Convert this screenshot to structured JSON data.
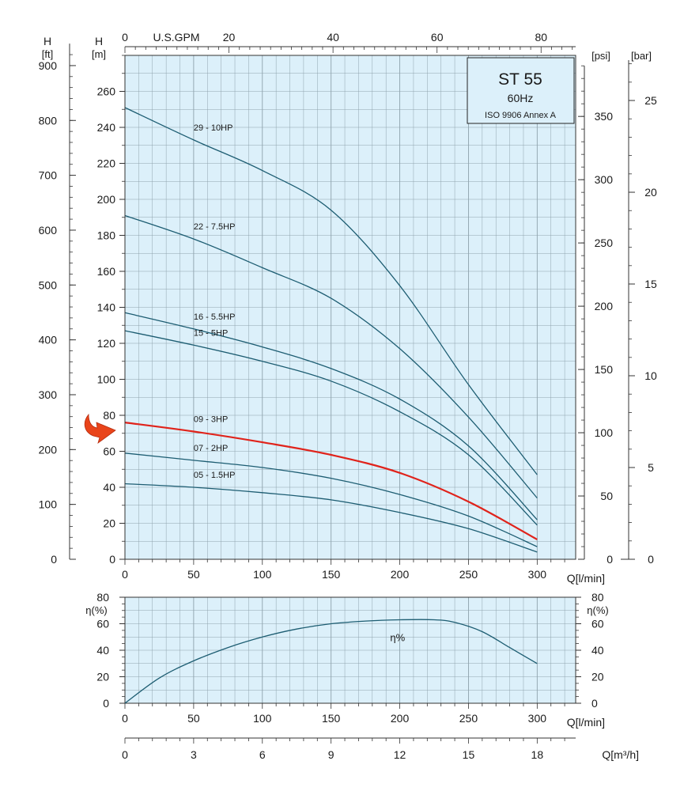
{
  "colors": {
    "plot_bg": "#dcf0fa",
    "grid": "#8fa3ad",
    "curve": "#1d5d72",
    "highlight": "#e0231b",
    "arrow": "#e9441a",
    "axis": "#333333"
  },
  "info_box": {
    "model": "ST 55",
    "frequency": "60Hz",
    "standard": "ISO 9906 Annex A"
  },
  "chart_data": [
    {
      "type": "line",
      "title": "ST 55",
      "subtitle": "60Hz",
      "xlabel": "Q[l/min]",
      "x_ticks": [
        0,
        50,
        100,
        150,
        200,
        250,
        300
      ],
      "xlim": [
        0,
        328
      ],
      "ylabel": "H [m]",
      "y_ticks": [
        0,
        20,
        40,
        60,
        80,
        100,
        120,
        140,
        160,
        180,
        200,
        220,
        240,
        260
      ],
      "ylim": [
        0,
        280
      ],
      "grid": true,
      "secondary_axes": {
        "top": {
          "label": "U.S.GPM",
          "ticks": [
            0,
            20,
            40,
            60,
            80
          ]
        },
        "left_outer": {
          "label_top": "H",
          "label_unit": "[ft]",
          "ticks": [
            0,
            100,
            200,
            300,
            400,
            500,
            600,
            700,
            800,
            900
          ]
        },
        "right_psi": {
          "label": "[psi]",
          "ticks": [
            0,
            50,
            100,
            150,
            200,
            250,
            300,
            350
          ]
        },
        "right_bar": {
          "label": "[bar]",
          "ticks": [
            0,
            5,
            10,
            15,
            20,
            25
          ]
        }
      },
      "highlighted_series": "09 - 3HP",
      "series": [
        {
          "name": "29 - 10HP",
          "x": [
            0,
            50,
            100,
            150,
            200,
            250,
            300
          ],
          "values": [
            251,
            233,
            216,
            194,
            152,
            97,
            47
          ]
        },
        {
          "name": "22 - 7.5HP",
          "x": [
            0,
            50,
            100,
            150,
            200,
            250,
            300
          ],
          "values": [
            191,
            178,
            162,
            145,
            117,
            79,
            34
          ]
        },
        {
          "name": "16 - 5.5HP",
          "x": [
            0,
            50,
            100,
            150,
            200,
            250,
            300
          ],
          "values": [
            137,
            128,
            118,
            106,
            89,
            63,
            22
          ]
        },
        {
          "name": "15 - 5HP",
          "x": [
            0,
            50,
            100,
            150,
            200,
            250,
            300
          ],
          "values": [
            127,
            119,
            110,
            99,
            82,
            58,
            19
          ]
        },
        {
          "name": "09 - 3HP",
          "x": [
            0,
            50,
            100,
            150,
            200,
            250,
            300
          ],
          "values": [
            76,
            71,
            65,
            58,
            48,
            32,
            11
          ]
        },
        {
          "name": "07 - 2HP",
          "x": [
            0,
            50,
            100,
            150,
            200,
            250,
            300
          ],
          "values": [
            59,
            55,
            51,
            45,
            36,
            24,
            7
          ]
        },
        {
          "name": "05 - 1.5HP",
          "x": [
            0,
            50,
            100,
            150,
            200,
            250,
            300
          ],
          "values": [
            42,
            40,
            37,
            33,
            26,
            17,
            4
          ]
        }
      ]
    },
    {
      "type": "line",
      "xlabel": "Q[l/min]",
      "x_ticks": [
        0,
        50,
        100,
        150,
        200,
        250,
        300
      ],
      "xlim": [
        0,
        328
      ],
      "ylabel": "η(%)",
      "y_ticks": [
        0,
        20,
        40,
        60,
        80
      ],
      "ylim": [
        0,
        80
      ],
      "grid": true,
      "secondary_axes": {
        "bottom": {
          "label": "Q[m³/h]",
          "ticks": [
            0,
            3,
            6,
            9,
            12,
            15,
            18
          ]
        }
      },
      "series": [
        {
          "name": "η%",
          "x": [
            0,
            25,
            50,
            75,
            100,
            125,
            150,
            175,
            200,
            225,
            240,
            260,
            280,
            300
          ],
          "values": [
            0,
            19,
            32,
            42,
            50,
            56,
            60,
            62,
            63,
            63,
            61,
            54,
            42,
            30
          ]
        }
      ]
    }
  ]
}
